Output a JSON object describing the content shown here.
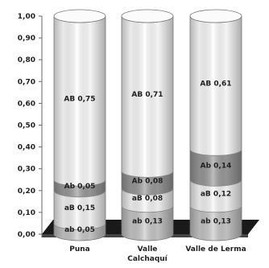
{
  "chart_data": {
    "type": "bar",
    "stacked": true,
    "categories": [
      "Puna",
      "Valle Calchaquí",
      "Valle de Lerma"
    ],
    "category_lines": [
      [
        "Puna"
      ],
      [
        "Valle",
        "Calchaquí"
      ],
      [
        "Valle de Lerma"
      ]
    ],
    "series": [
      {
        "name": "ab",
        "values": [
          0.05,
          0.13,
          0.13
        ],
        "labels": [
          "ab 0,05",
          "ab 0,13",
          "ab 0,13"
        ],
        "color": "#c8c8c8"
      },
      {
        "name": "aB",
        "values": [
          0.15,
          0.08,
          0.12
        ],
        "labels": [
          "aB 0,15",
          "aB 0,08",
          "aB 0,12"
        ],
        "color": "#f7f7f7"
      },
      {
        "name": "Ab",
        "values": [
          0.05,
          0.08,
          0.14
        ],
        "labels": [
          "Ab 0,05",
          "Ab 0,08",
          "Ab 0,14"
        ],
        "color": "#9a9a9a"
      },
      {
        "name": "AB",
        "values": [
          0.75,
          0.71,
          0.61
        ],
        "labels": [
          "AB 0,75",
          "AB 0,71",
          "AB 0,61"
        ],
        "color": "#ffffff"
      }
    ],
    "yticks": [
      "0,00",
      "0,10",
      "0,20",
      "0,30",
      "0,40",
      "0,50",
      "0,60",
      "0,70",
      "0,80",
      "0,90",
      "1,00"
    ],
    "ylim": [
      0,
      1
    ],
    "grid": false,
    "legend": "none",
    "title": "",
    "xlabel": "",
    "ylabel": ""
  }
}
